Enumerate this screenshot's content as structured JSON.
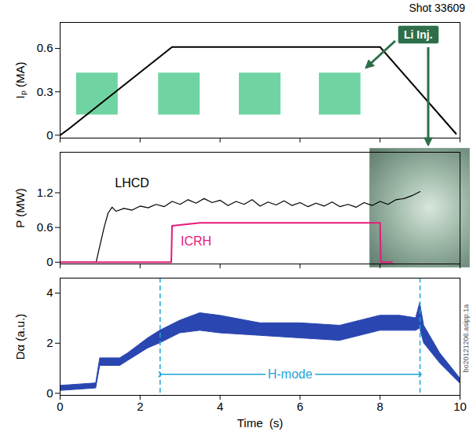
{
  "chart_data": [
    {
      "type": "line",
      "title": "Shot 33609",
      "ylabel": "Iₚ (MA)",
      "x": [
        0,
        0.2,
        2.8,
        8.0,
        9.9
      ],
      "values": [
        0,
        0.04,
        0.61,
        0.61,
        0.01
      ],
      "color": "#000000",
      "xlim": [
        0,
        10
      ],
      "xticks": [
        0,
        2,
        4,
        6,
        8,
        10
      ],
      "ylim": [
        -0.02,
        0.78
      ],
      "yticks": [
        0,
        0.3,
        0.6
      ],
      "tick_labels": "y",
      "li_injection": {
        "label": "Li Inj.",
        "color": "#5fcf98",
        "intervals": [
          [
            0.41,
            1.45
          ],
          [
            2.46,
            3.5
          ],
          [
            4.48,
            5.52
          ],
          [
            6.48,
            7.52
          ]
        ],
        "band": [
          0.14,
          0.43
        ]
      }
    },
    {
      "type": "line",
      "ylabel": "P (MW)",
      "series": [
        {
          "name": "LHCD",
          "color": "#000000",
          "x": [
            0,
            0.9,
            1.0,
            1.1,
            1.2,
            1.3,
            1.4,
            1.6,
            1.8,
            2.0,
            2.2,
            2.4,
            2.6,
            2.8,
            3.0,
            3.2,
            3.4,
            3.6,
            3.8,
            4.0,
            4.2,
            4.4,
            4.6,
            4.8,
            5.0,
            5.2,
            5.4,
            5.6,
            5.8,
            6.0,
            6.2,
            6.4,
            6.6,
            6.8,
            7.0,
            7.2,
            7.4,
            7.6,
            7.8,
            8.0,
            8.2,
            8.4,
            8.6,
            8.8,
            9.0
          ],
          "values": [
            0,
            0,
            0.3,
            0.6,
            0.85,
            0.95,
            0.88,
            0.93,
            0.9,
            0.97,
            0.94,
            1.0,
            0.96,
            1.05,
            1.0,
            1.08,
            1.02,
            1.1,
            1.03,
            1.07,
            0.98,
            1.05,
            1.0,
            1.08,
            0.97,
            1.04,
            0.99,
            1.06,
            0.98,
            1.03,
            0.96,
            1.02,
            0.97,
            1.04,
            0.96,
            1.0,
            0.95,
            1.03,
            0.98,
            1.05,
            1.0,
            1.08,
            1.1,
            1.15,
            1.22
          ]
        },
        {
          "name": "ICRH",
          "color": "#e6197d",
          "x": [
            0,
            2.78,
            2.8,
            3.5,
            8.0,
            8.02,
            8.3
          ],
          "values": [
            0,
            0,
            0.63,
            0.68,
            0.68,
            0,
            0
          ]
        }
      ],
      "xlim": [
        0,
        10
      ],
      "xticks": [
        0,
        2,
        4,
        6,
        8,
        10
      ],
      "ylim": [
        -0.03,
        1.9
      ],
      "yticks": [
        0,
        0.6,
        1.2
      ],
      "tick_labels": "y"
    },
    {
      "type": "area",
      "ylabel": "Dα (a.u.)",
      "xlabel": "Time  (s)",
      "series": [
        {
          "color": "#2a46b0",
          "x": [
            0,
            0.9,
            1.0,
            1.5,
            1.7,
            2.2,
            2.5,
            3.0,
            3.5,
            4.0,
            5.0,
            6.0,
            7.0,
            8.0,
            8.5,
            8.9,
            9.0,
            9.1,
            9.5,
            10.0
          ],
          "lower": [
            0.1,
            0.2,
            1.1,
            1.1,
            1.3,
            1.8,
            2.0,
            2.4,
            2.5,
            2.4,
            2.3,
            2.2,
            2.1,
            2.5,
            2.5,
            2.5,
            2.6,
            2.0,
            1.2,
            0.4
          ],
          "upper": [
            0.3,
            0.4,
            1.4,
            1.4,
            1.6,
            2.2,
            2.5,
            2.9,
            3.2,
            3.1,
            2.8,
            2.8,
            2.7,
            3.1,
            3.1,
            3.0,
            3.6,
            2.7,
            1.6,
            0.6
          ]
        }
      ],
      "xlim": [
        0,
        10
      ],
      "xticks": [
        0,
        2,
        4,
        6,
        8,
        10
      ],
      "ylim": [
        -0.08,
        4.6
      ],
      "yticks": [
        0,
        2,
        4
      ],
      "h_mode": {
        "label": "H-mode",
        "start": 2.5,
        "end": 9.0,
        "color": "#1ea5d6"
      },
      "code": "bo20121206.asipp.1a"
    }
  ]
}
